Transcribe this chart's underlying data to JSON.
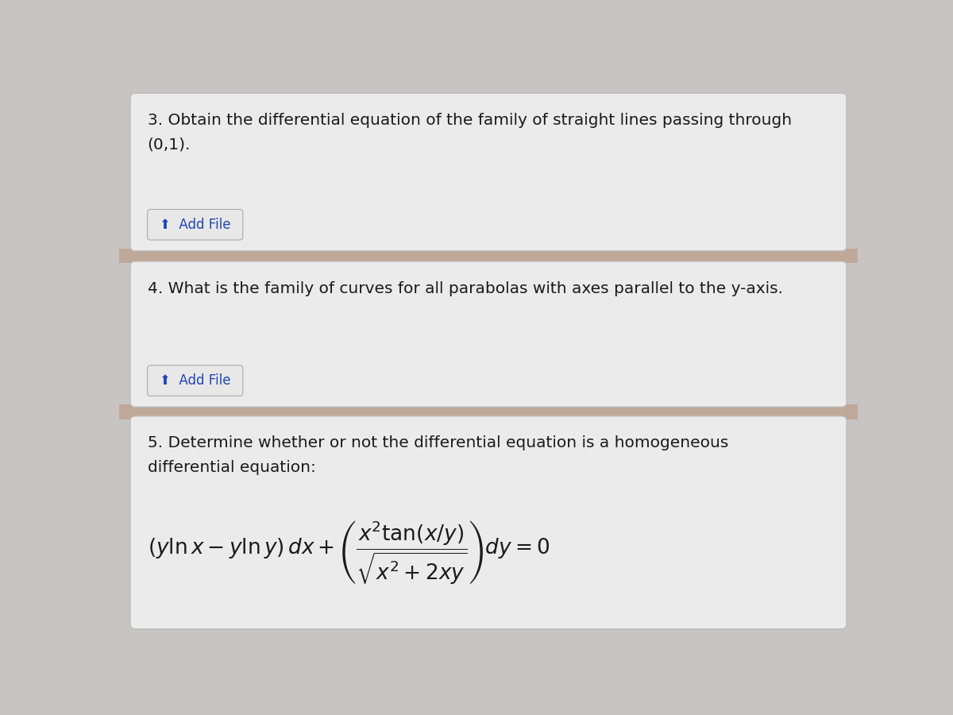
{
  "bg_color": "#c8c4c4",
  "card_color": "#ebebeb",
  "card_border_color": "#bbbbbb",
  "text_color": "#1a1a1a",
  "button_color": "#e8e8e8",
  "button_border_color": "#aaaaaa",
  "button_text_color": "#2244bb",
  "q3_text_line1": "3. Obtain the differential equation of the family of straight lines passing through",
  "q3_text_line2": "(0,1).",
  "q4_text": "4. What is the family of curves for all parabolas with axes parallel to the y-axis.",
  "q5_text_line1": "5. Determine whether or not the differential equation is a homogeneous",
  "q5_text_line2": "differential equation:",
  "add_file_label": "⬆  Add File",
  "separator_color": "#c0a898",
  "font_size_question": 14.5,
  "font_size_button": 12,
  "font_size_equation": 19
}
